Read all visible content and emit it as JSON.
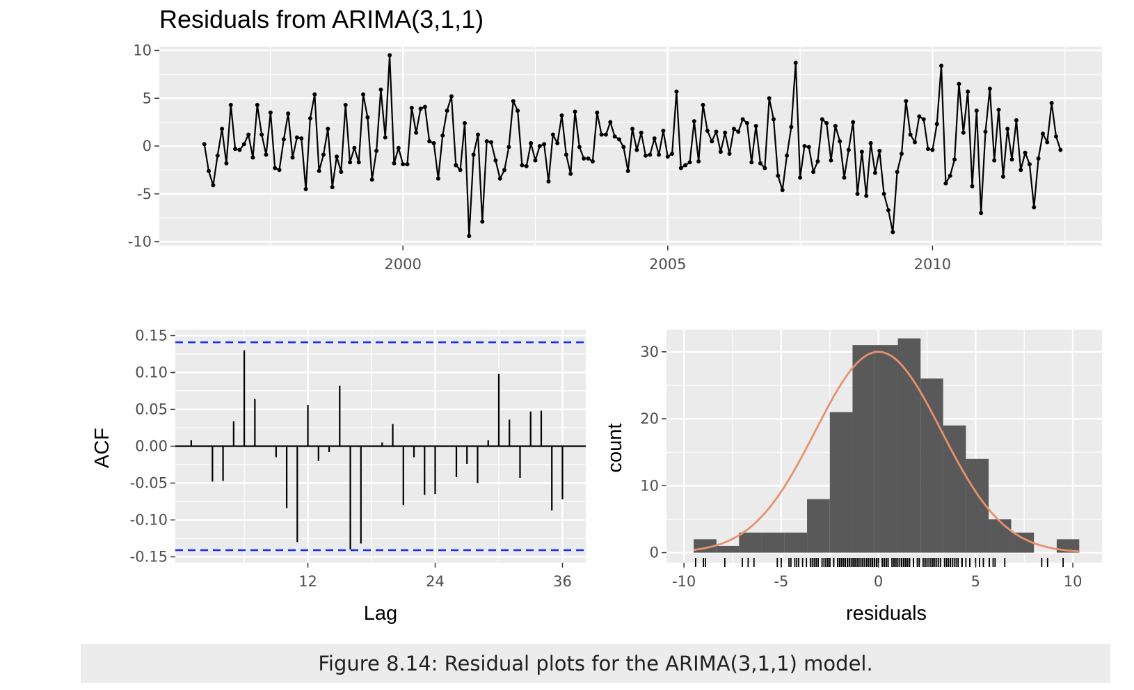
{
  "caption": "Figure 8.14: Residual plots for the ARIMA(3,1,1) model.",
  "colors": {
    "panel": "#ebebeb",
    "grid": "#ffffff",
    "line": "#000000",
    "ci": "#1c2bff",
    "bar": "#595959",
    "curve": "#e8916e"
  },
  "chart_data": [
    {
      "type": "line",
      "title": "Residuals from ARIMA(3,1,1)",
      "xlabel": "",
      "ylabel": "",
      "x_start": 1996.25,
      "x_step": 0.08333,
      "xlim": [
        1995.4,
        2013.2
      ],
      "ylim": [
        -10.4,
        10.4
      ],
      "xticks": [
        2000,
        2005,
        2010
      ],
      "yticks": [
        -10,
        -5,
        0,
        5,
        10
      ],
      "grid": true,
      "values": [
        0.2,
        -2.6,
        -4.1,
        -1.0,
        1.8,
        -1.8,
        4.3,
        -0.3,
        -0.4,
        0.2,
        1.2,
        -1.2,
        4.3,
        1.2,
        -0.9,
        3.5,
        -2.3,
        -2.5,
        0.7,
        3.4,
        -1.2,
        0.9,
        0.8,
        -4.5,
        2.9,
        5.4,
        -2.6,
        -0.9,
        1.8,
        -4.3,
        -1.1,
        -2.7,
        4.3,
        -1.7,
        -0.2,
        -1.7,
        5.4,
        3.0,
        -3.5,
        -0.5,
        5.9,
        0.9,
        9.5,
        -1.8,
        -0.2,
        -1.9,
        -1.9,
        4.0,
        1.4,
        3.9,
        4.1,
        0.5,
        0.3,
        -3.4,
        1.1,
        3.7,
        5.2,
        -2.0,
        -2.5,
        2.4,
        -9.4,
        -0.9,
        1.2,
        -7.9,
        0.5,
        0.4,
        -1.5,
        -3.4,
        -2.5,
        -0.1,
        4.7,
        3.7,
        -2.0,
        -2.1,
        0.3,
        -1.5,
        0.0,
        0.2,
        -3.7,
        1.2,
        0.3,
        3.2,
        -0.9,
        -2.9,
        3.6,
        -0.1,
        -1.3,
        -1.3,
        -1.6,
        3.5,
        1.2,
        1.2,
        2.5,
        1.0,
        0.7,
        -0.1,
        -2.6,
        1.8,
        -0.4,
        1.4,
        -1.0,
        -0.9,
        0.8,
        -0.9,
        1.6,
        -1.1,
        -0.8,
        5.7,
        -2.3,
        -2.0,
        -1.7,
        2.6,
        -1.6,
        4.3,
        1.6,
        0.5,
        1.5,
        -0.6,
        1.4,
        -0.8,
        1.8,
        1.5,
        2.8,
        2.4,
        -1.7,
        2.1,
        -1.8,
        -2.3,
        5.0,
        2.8,
        -3.1,
        -4.6,
        -1.0,
        2.0,
        8.7,
        -3.3,
        0.0,
        -0.1,
        -2.7,
        -1.6,
        2.8,
        2.4,
        -1.5,
        2.1,
        0.5,
        -3.3,
        -0.4,
        2.5,
        -5.0,
        -0.6,
        -5.2,
        0.3,
        -2.8,
        -0.5,
        -5.0,
        -6.7,
        -9.0,
        -2.7,
        -0.8,
        4.7,
        1.2,
        0.4,
        3.1,
        2.8,
        -0.3,
        -0.4,
        2.3,
        8.4,
        -3.9,
        -3.1,
        -1.4,
        6.5,
        1.4,
        5.7,
        -4.2,
        3.7,
        -7.0,
        1.5,
        6.0,
        -1.5,
        3.8,
        -3.2,
        1.8,
        -1.4,
        2.7,
        -2.5,
        -0.7,
        -1.9,
        -6.4,
        -1.3,
        1.3,
        0.4,
        4.5,
        1.0,
        -0.4
      ]
    },
    {
      "type": "bar",
      "title": "",
      "xlabel": "Lag",
      "ylabel": "ACF",
      "xlim": [
        -0.5,
        38.2
      ],
      "ylim": [
        -0.158,
        0.158
      ],
      "xticks": [
        12,
        24,
        36
      ],
      "yticks": [
        -0.15,
        -0.1,
        -0.05,
        0.0,
        0.05,
        0.1,
        0.15
      ],
      "ytick_labels": [
        "-0.15",
        "-0.10",
        "-0.05",
        "0.00",
        "0.05",
        "0.10",
        "0.15"
      ],
      "ci": 0.141,
      "lags": [
        1,
        2,
        3,
        4,
        5,
        6,
        7,
        8,
        9,
        10,
        11,
        12,
        13,
        14,
        15,
        16,
        17,
        18,
        19,
        20,
        21,
        22,
        23,
        24,
        25,
        26,
        27,
        28,
        29,
        30,
        31,
        32,
        33,
        34,
        35,
        36
      ],
      "values": [
        0.008,
        0.0,
        -0.048,
        -0.047,
        0.034,
        0.13,
        0.064,
        0.0,
        -0.015,
        -0.084,
        -0.13,
        0.056,
        -0.02,
        -0.008,
        0.082,
        -0.14,
        -0.132,
        0.0,
        0.005,
        0.03,
        -0.08,
        -0.015,
        -0.066,
        -0.065,
        0.0,
        -0.042,
        -0.024,
        -0.05,
        0.008,
        0.098,
        0.036,
        -0.043,
        0.047,
        0.048,
        -0.087,
        -0.072
      ]
    },
    {
      "type": "bar",
      "title": "",
      "xlabel": "residuals",
      "ylabel": "count",
      "xlim": [
        -10.9,
        11.5
      ],
      "ylim": [
        -1.5,
        33.3
      ],
      "xticks": [
        -10,
        -5,
        0,
        5,
        10
      ],
      "yticks": [
        0,
        10,
        20,
        30
      ],
      "bin_edges": [
        -9.5,
        -8.33,
        -7.17,
        -6.0,
        -4.83,
        -3.67,
        -2.5,
        -1.33,
        -0.17,
        1.0,
        2.17,
        3.33,
        4.5,
        5.67,
        6.83,
        8.0,
        9.17,
        10.33
      ],
      "counts": [
        2,
        1,
        3,
        3,
        3,
        8,
        21,
        31,
        31,
        32,
        26,
        19,
        14,
        5,
        3,
        0,
        2,
        1
      ],
      "normal_curve": {
        "mean": 0,
        "sd": 3.24,
        "scale": 30.0
      },
      "rug": [
        -9.4,
        -9.0,
        -8.9,
        -7.9,
        -7.0,
        -6.7,
        -6.4,
        -5.2,
        -5.0,
        -5.0,
        -4.6,
        -4.5,
        -4.3,
        -4.2,
        -4.1,
        -3.9,
        -3.7,
        -3.5,
        -3.4,
        -3.4,
        -3.3,
        -3.3,
        -3.2,
        -3.1,
        -3.1,
        -2.9,
        -2.8,
        -2.7,
        -2.7,
        -2.6,
        -2.6,
        -2.6,
        -2.5,
        -2.5,
        -2.5,
        -2.3,
        -2.3,
        -2.3,
        -2.1,
        -2.0,
        -2.0,
        -2.0,
        -1.9,
        -1.9,
        -1.9,
        -1.8,
        -1.8,
        -1.8,
        -1.7,
        -1.7,
        -1.7,
        -1.7,
        -1.6,
        -1.6,
        -1.6,
        -1.5,
        -1.5,
        -1.5,
        -1.4,
        -1.4,
        -1.3,
        -1.3,
        -1.3,
        -1.2,
        -1.2,
        -1.1,
        -1.1,
        -1.0,
        -1.0,
        -1.0,
        -0.9,
        -0.9,
        -0.9,
        -0.9,
        -0.9,
        -0.8,
        -0.8,
        -0.8,
        -0.7,
        -0.6,
        -0.6,
        -0.5,
        -0.5,
        -0.4,
        -0.4,
        -0.4,
        -0.4,
        -0.4,
        -0.3,
        -0.3,
        -0.3,
        -0.2,
        -0.2,
        -0.1,
        -0.1,
        -0.1,
        -0.1,
        0.0,
        0.0,
        0.0,
        0.2,
        0.2,
        0.2,
        0.3,
        0.3,
        0.3,
        0.4,
        0.4,
        0.4,
        0.5,
        0.5,
        0.5,
        0.5,
        0.7,
        0.7,
        0.8,
        0.8,
        0.9,
        0.9,
        1.0,
        1.0,
        1.1,
        1.2,
        1.2,
        1.2,
        1.2,
        1.2,
        1.3,
        1.3,
        1.4,
        1.4,
        1.4,
        1.4,
        1.5,
        1.5,
        1.5,
        1.6,
        1.6,
        1.6,
        1.8,
        1.8,
        1.8,
        1.8,
        2.0,
        2.1,
        2.1,
        2.3,
        2.4,
        2.4,
        2.4,
        2.5,
        2.5,
        2.6,
        2.7,
        2.8,
        2.8,
        2.8,
        2.8,
        2.9,
        3.0,
        3.1,
        3.2,
        3.4,
        3.5,
        3.5,
        3.6,
        3.7,
        3.7,
        3.7,
        3.8,
        3.9,
        4.0,
        4.1,
        4.3,
        4.3,
        4.3,
        4.3,
        4.5,
        4.7,
        4.7,
        5.0,
        5.2,
        5.4,
        5.4,
        5.7,
        5.7,
        5.9,
        6.0,
        6.5,
        8.4,
        8.7,
        9.5
      ]
    }
  ]
}
